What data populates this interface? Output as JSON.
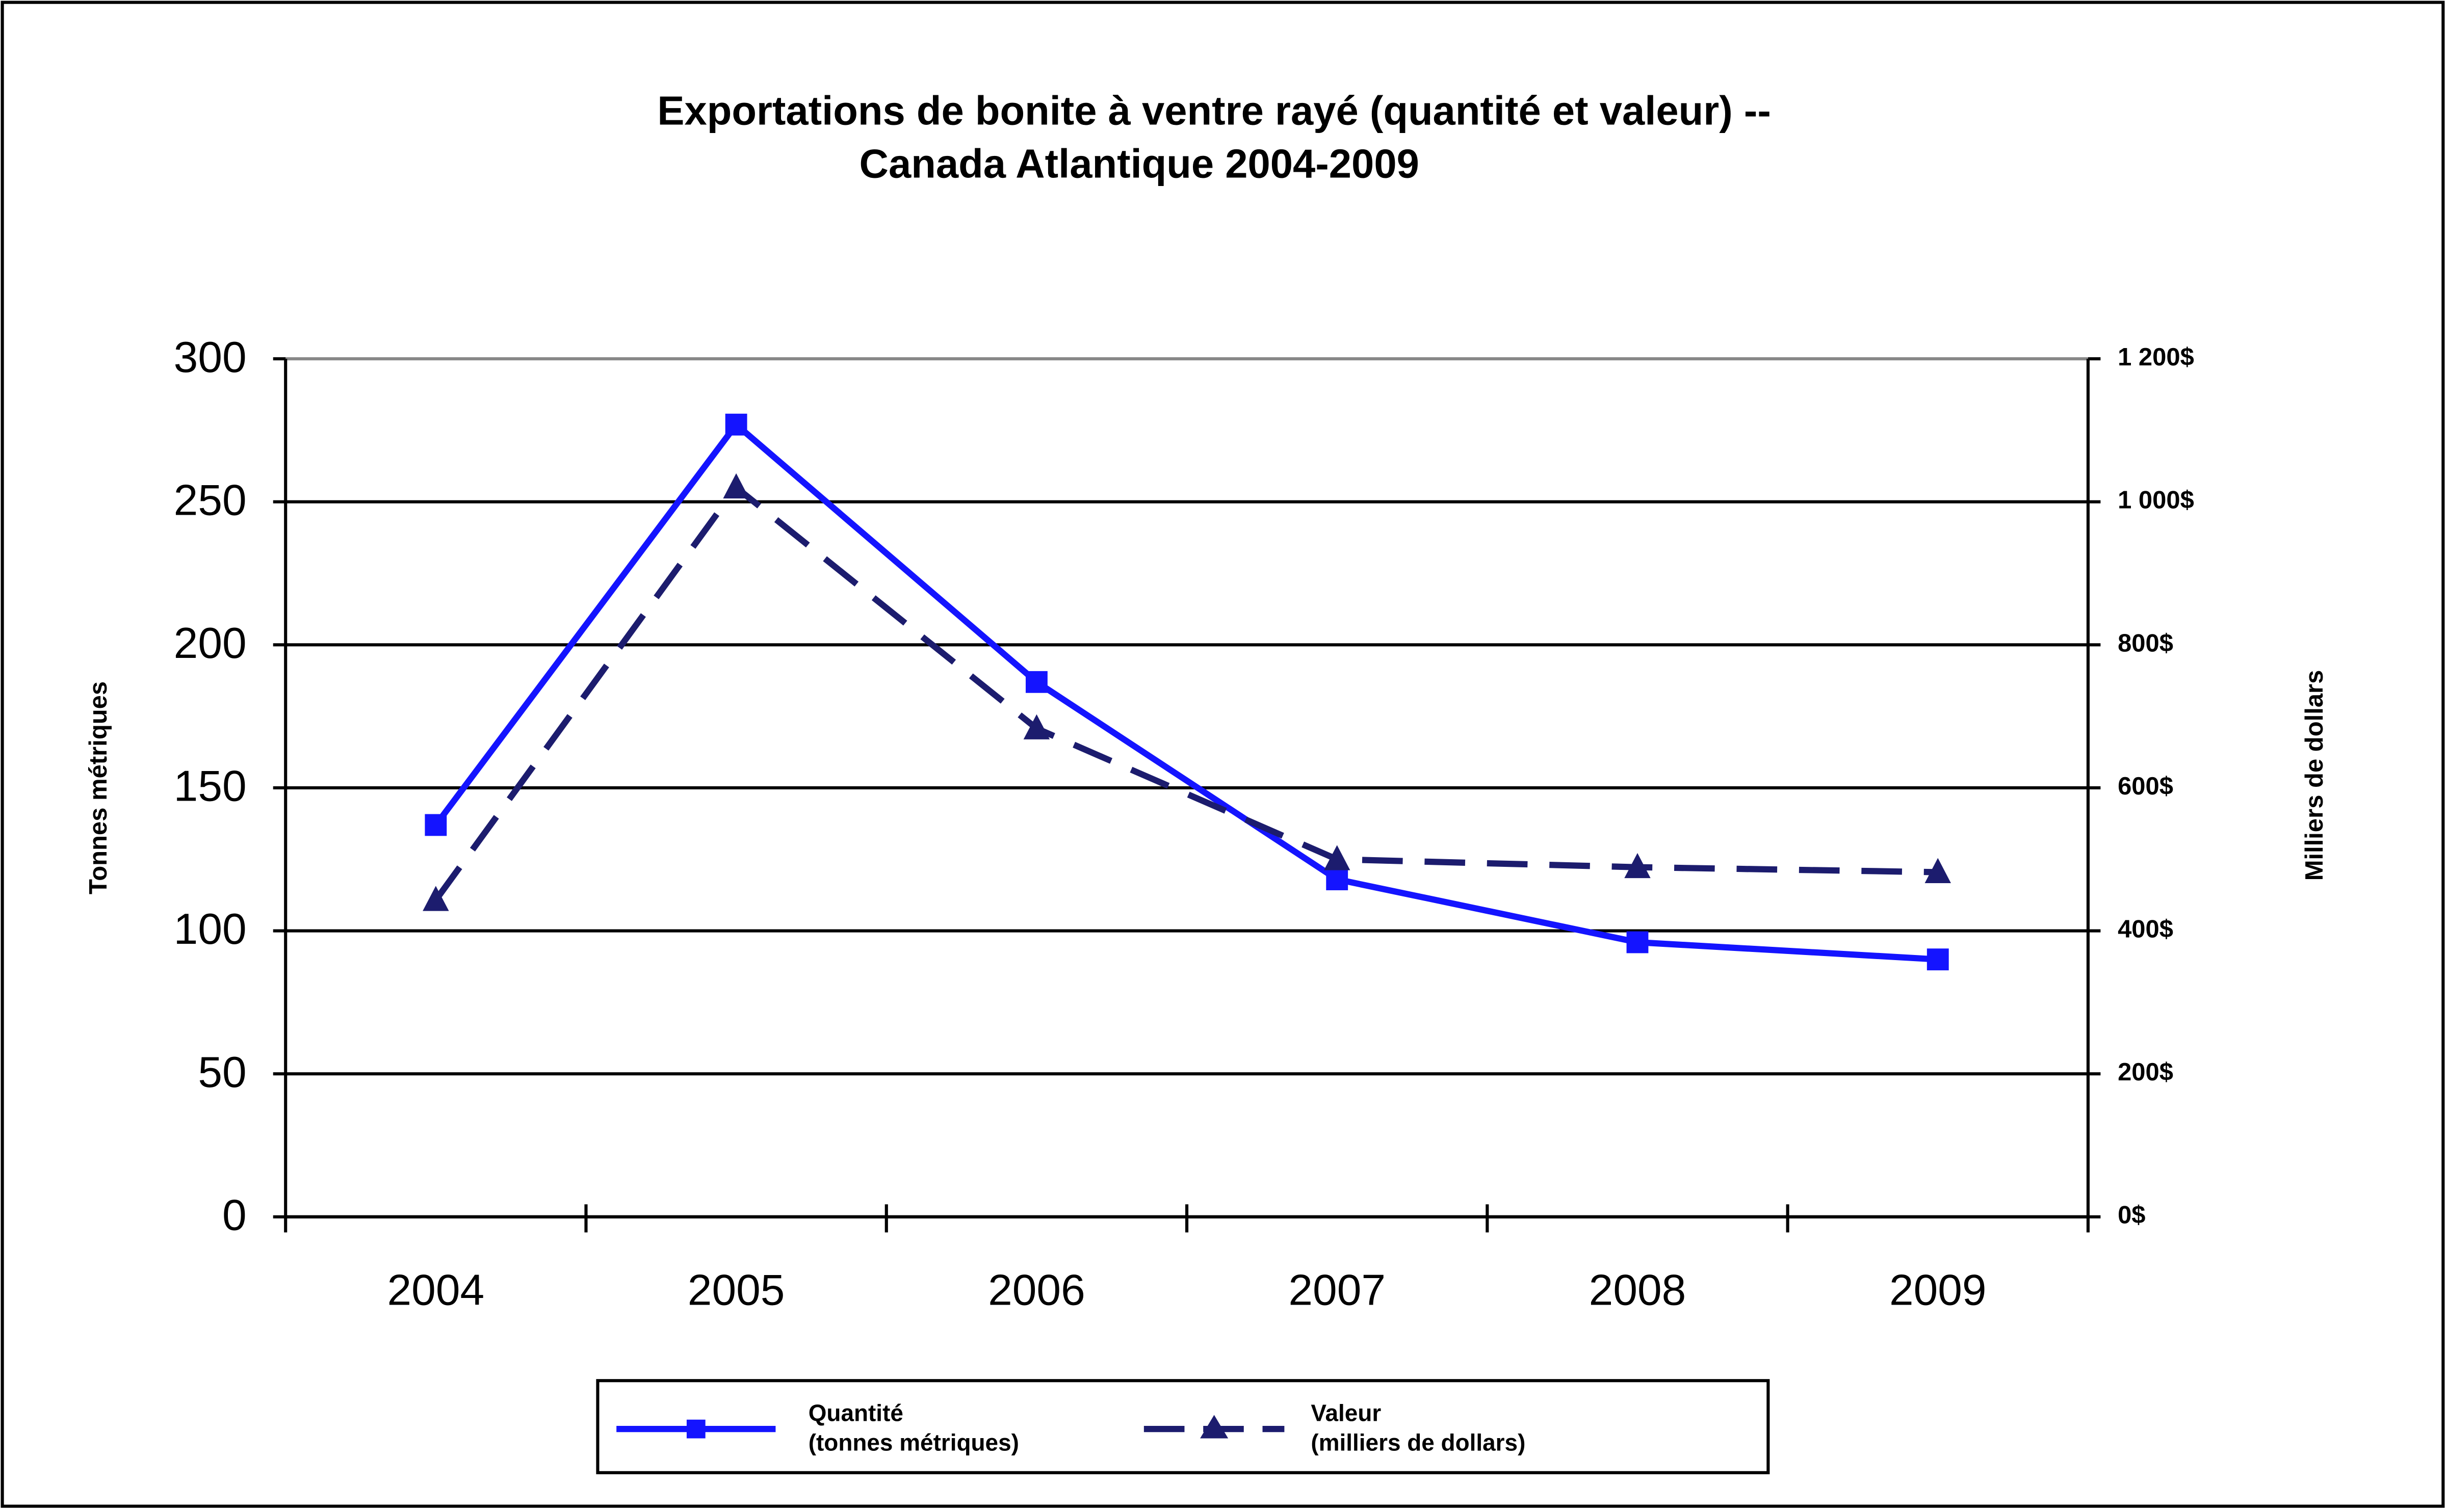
{
  "chart_data": {
    "type": "line",
    "title": [
      "Exportations de bonite à ventre rayé (quantité et valeur) --",
      "Canada Atlantique 2004-2009"
    ],
    "y_label": "Tonnes métriques",
    "y2_label": "Milliers de dollars",
    "categories": [
      "2004",
      "2005",
      "2006",
      "2007",
      "2008",
      "2009"
    ],
    "series": [
      {
        "name": "Quantité\n(tonnes métriques)",
        "color": "#1414ff",
        "dashed": false,
        "marker": "square",
        "values": [
          137,
          277,
          187,
          118,
          96,
          90
        ]
      },
      {
        "name": "Valeur\n(milliers de dollars)",
        "color": "#1c1c6e",
        "dashed": true,
        "marker": "triangle",
        "axis": "y2",
        "values": [
          443,
          1020,
          683,
          500,
          489,
          482
        ]
      }
    ],
    "ylim": [
      0,
      300
    ],
    "yticks": [
      0,
      50,
      100,
      150,
      200,
      250,
      300
    ],
    "y2lim": [
      0,
      1200
    ],
    "y2ticks": [
      {
        "value": 0,
        "label": "0$"
      },
      {
        "value": 200,
        "label": "200$"
      },
      {
        "value": 400,
        "label": "400$"
      },
      {
        "value": 600,
        "label": "600$"
      },
      {
        "value": 800,
        "label": "800$"
      },
      {
        "value": 1000,
        "label": "1 000$"
      },
      {
        "value": 1200,
        "label": "1 200$"
      }
    ],
    "grid": true
  }
}
